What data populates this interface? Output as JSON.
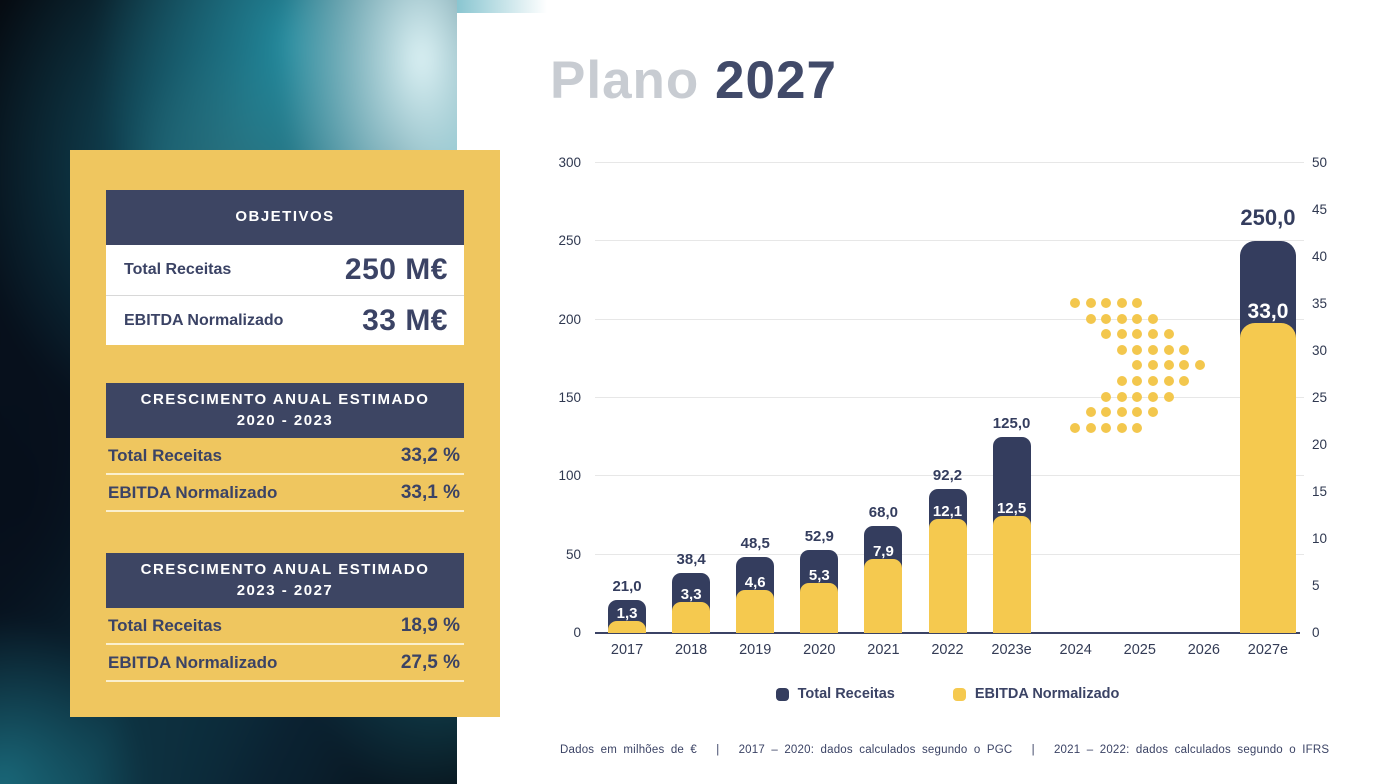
{
  "slide": {
    "title_light": "Plano",
    "title_bold": "2027",
    "footnote": "Dados em milhões de €   |   2017 – 2020: dados calculados segundo o PGC   |   2021 – 2022: dados calculados segundo o IFRS"
  },
  "panel": {
    "objetivos": {
      "header": "OBJETIVOS",
      "rows": [
        {
          "label": "Total Receitas",
          "value": "250 M€"
        },
        {
          "label": "EBITDA Normalizado",
          "value": "33 M€"
        }
      ]
    },
    "growth_2020_2023": {
      "header_line1": "CRESCIMENTO ANUAL ESTIMADO",
      "header_line2": "2020 - 2023",
      "rows": [
        {
          "label": "Total Receitas",
          "value": "33,2 %"
        },
        {
          "label": "EBITDA Normalizado",
          "value": "33,1 %"
        }
      ]
    },
    "growth_2023_2027": {
      "header_line1": "CRESCIMENTO ANUAL ESTIMADO",
      "header_line2": "2023 - 2027",
      "rows": [
        {
          "label": "Total Receitas",
          "value": "18,9 %"
        },
        {
          "label": "EBITDA Normalizado",
          "value": "27,5 %"
        }
      ]
    }
  },
  "chart_data": {
    "type": "bar",
    "title": "Plano 2027",
    "categories": [
      "2017",
      "2018",
      "2019",
      "2020",
      "2021",
      "2022",
      "2023e",
      "2024",
      "2025",
      "2026",
      "2027e"
    ],
    "series": [
      {
        "name": "Total Receitas",
        "axis": "left",
        "color": "#343D5E",
        "values": [
          21.0,
          38.4,
          48.5,
          52.9,
          68.0,
          92.2,
          125.0,
          null,
          null,
          null,
          250.0
        ],
        "labels": [
          "21,0",
          "38,4",
          "48,5",
          "52,9",
          "68,0",
          "92,2",
          "125,0",
          "",
          "",
          "",
          "250,0"
        ]
      },
      {
        "name": "EBITDA Normalizado",
        "axis": "right",
        "color": "#F5C94F",
        "values": [
          1.3,
          3.3,
          4.6,
          5.3,
          7.9,
          12.1,
          12.5,
          null,
          null,
          null,
          33.0
        ],
        "labels": [
          "1,3",
          "3,3",
          "4,6",
          "5,3",
          "7,9",
          "12,1",
          "12,5",
          "",
          "",
          "",
          "33,0"
        ]
      }
    ],
    "left_axis": {
      "min": 0,
      "max": 300,
      "step": 50
    },
    "right_axis": {
      "min": 0,
      "max": 50,
      "step": 5
    },
    "grid": true,
    "legend_position": "bottom",
    "legend": [
      "Total Receitas",
      "EBITDA Normalizado"
    ],
    "emphasized_category": "2027e"
  }
}
